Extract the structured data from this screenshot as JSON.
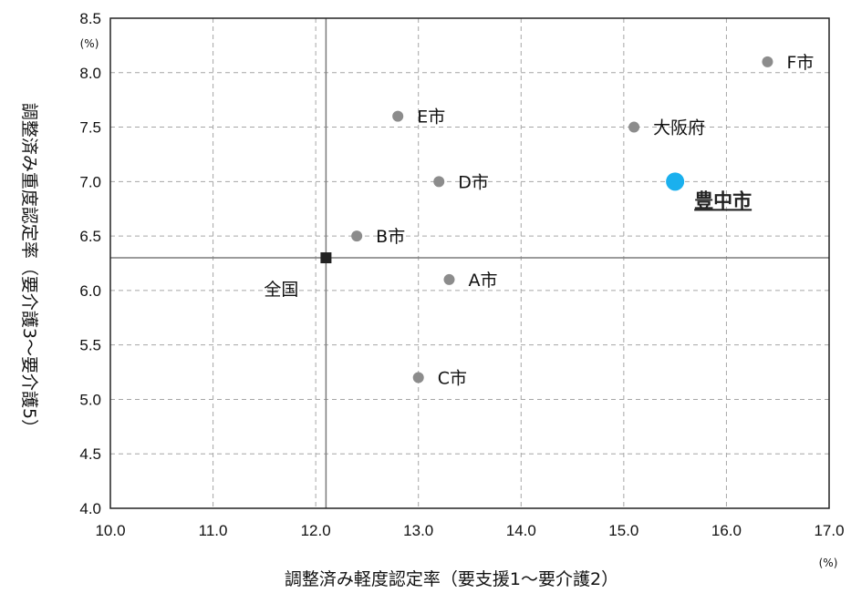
{
  "chart_data": {
    "type": "scatter",
    "title": "",
    "xlabel": "調整済み軽度認定率（要支援1～要介護2）",
    "ylabel": "調整済み重度認定率（要介護3～要介護5）",
    "x_unit": "(%)",
    "y_unit": "(%)",
    "xlim": [
      10.0,
      17.0
    ],
    "ylim": [
      4.0,
      8.5
    ],
    "x_ticks": [
      "10.0",
      "11.0",
      "12.0",
      "13.0",
      "14.0",
      "15.0",
      "16.0",
      "17.0"
    ],
    "y_ticks": [
      "4.0",
      "4.5",
      "5.0",
      "5.5",
      "6.0",
      "6.5",
      "7.0",
      "7.5",
      "8.0",
      "8.5"
    ],
    "grid": true,
    "points": [
      {
        "label": "A市",
        "x": 13.3,
        "y": 6.1,
        "kind": "city"
      },
      {
        "label": "B市",
        "x": 12.4,
        "y": 6.5,
        "kind": "city"
      },
      {
        "label": "C市",
        "x": 13.0,
        "y": 5.2,
        "kind": "city"
      },
      {
        "label": "D市",
        "x": 13.2,
        "y": 7.0,
        "kind": "city"
      },
      {
        "label": "E市",
        "x": 12.8,
        "y": 7.6,
        "kind": "city"
      },
      {
        "label": "F市",
        "x": 16.4,
        "y": 8.1,
        "kind": "city"
      },
      {
        "label": "大阪府",
        "x": 15.1,
        "y": 7.5,
        "kind": "city"
      },
      {
        "label": "豊中市",
        "x": 15.5,
        "y": 7.0,
        "kind": "highlight"
      },
      {
        "label": "全国",
        "x": 12.1,
        "y": 6.3,
        "kind": "national"
      }
    ],
    "reference_lines": {
      "x": 12.1,
      "y": 6.3
    },
    "colors": {
      "city": "#8c8c8c",
      "highlight": "#1ab0ee",
      "national": "#222222",
      "grid": "#a6a6a6",
      "axis": "#222222"
    }
  }
}
